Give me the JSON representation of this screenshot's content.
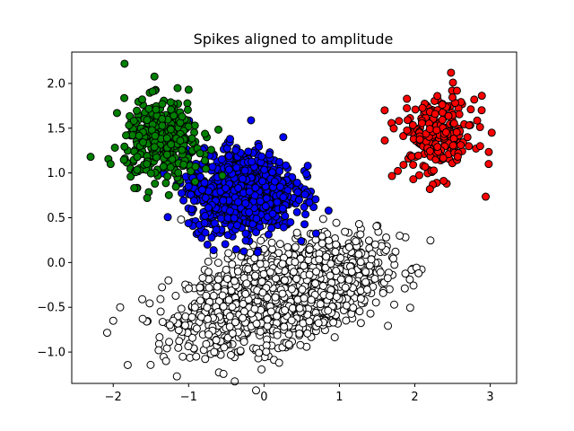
{
  "chart_data": {
    "type": "scatter",
    "title": "Spikes aligned to amplitude",
    "xlabel": "",
    "ylabel": "",
    "xlim": [
      -2.55,
      3.35
    ],
    "ylim": [
      -1.35,
      2.35
    ],
    "xticks": [
      -2,
      -1,
      0,
      1,
      2,
      3
    ],
    "yticks": [
      -1.0,
      -0.5,
      0.0,
      0.5,
      1.0,
      1.5,
      2.0
    ],
    "xtick_labels": [
      "−2",
      "−1",
      "0",
      "1",
      "2",
      "3"
    ],
    "ytick_labels": [
      "−1.0",
      "−0.5",
      "0.0",
      "0.5",
      "1.0",
      "1.5",
      "2.0"
    ],
    "grid": false,
    "series": [
      {
        "color": "#ffffff",
        "edge": "#000000",
        "count": 1700,
        "center": [
          0.25,
          -0.35
        ],
        "spread": [
          0.62,
          0.28
        ],
        "correlation": 0.45,
        "points": [
          [
            -2.0,
            -0.65
          ],
          [
            2.05,
            -0.12
          ],
          [
            -1.1,
            0.48
          ],
          [
            -1.3,
            -1.1
          ],
          [
            1.62,
            0.28
          ],
          [
            0.2,
            -1.12
          ],
          [
            -0.9,
            -1.05
          ],
          [
            1.8,
            0.3
          ]
        ]
      },
      {
        "color": "#0000ff",
        "edge": "#000000",
        "count": 1000,
        "center": [
          -0.3,
          0.8
        ],
        "spread": [
          0.35,
          0.22
        ],
        "correlation": 0.0,
        "points": [
          [
            0.58,
            1.08
          ],
          [
            -0.75,
            0.2
          ],
          [
            -1.0,
            0.85
          ],
          [
            0.35,
            0.45
          ],
          [
            -0.45,
            1.38
          ]
        ]
      },
      {
        "color": "#008000",
        "edge": "#000000",
        "count": 350,
        "center": [
          -1.35,
          1.35
        ],
        "spread": [
          0.25,
          0.22
        ],
        "correlation": 0.0,
        "points": [
          [
            -1.85,
            2.22
          ],
          [
            -2.3,
            1.18
          ],
          [
            -1.55,
            0.72
          ],
          [
            -1.0,
            1.93
          ],
          [
            -1.95,
            1.67
          ]
        ]
      },
      {
        "color": "#ff0000",
        "edge": "#000000",
        "count": 220,
        "center": [
          2.3,
          1.4
        ],
        "spread": [
          0.25,
          0.22
        ],
        "correlation": 0.0,
        "points": [
          [
            2.48,
            2.12
          ],
          [
            3.02,
            1.45
          ],
          [
            2.98,
            1.1
          ],
          [
            1.6,
            1.7
          ],
          [
            2.2,
            0.82
          ],
          [
            1.98,
            0.93
          ]
        ]
      }
    ]
  }
}
